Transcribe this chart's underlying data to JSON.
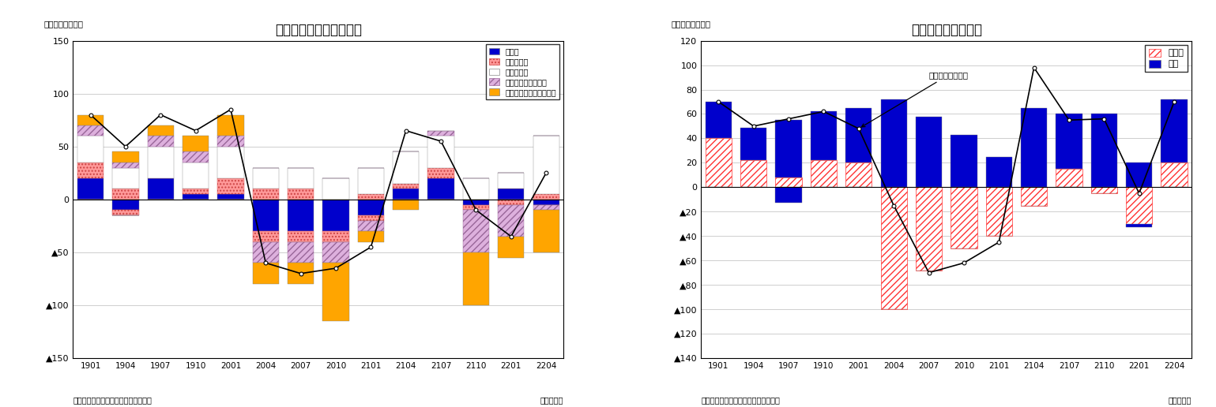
{
  "chart1": {
    "title": "産業別・就業者数の推移",
    "ylabel_top": "（前年差、万人）",
    "xlabel_bottom": "（年・月）",
    "source": "（資料）総務省統計局「労働力調査」",
    "ylim": [
      -150,
      150
    ],
    "yticks": [
      150,
      100,
      50,
      0,
      -50,
      -100,
      -150
    ],
    "ytick_labels": [
      "150",
      "100",
      "50",
      "0",
      "▲50",
      "▲100",
      "▲150"
    ],
    "categories": [
      "1901",
      "1904",
      "1907",
      "1910",
      "2001",
      "2004",
      "2007",
      "2010",
      "2101",
      "2104",
      "2107",
      "2110",
      "2201",
      "2204"
    ],
    "manuf_pos": [
      20,
      0,
      20,
      5,
      5,
      0,
      0,
      0,
      0,
      10,
      20,
      0,
      10,
      0
    ],
    "whole_pos": [
      15,
      10,
      0,
      5,
      15,
      10,
      10,
      0,
      5,
      5,
      10,
      0,
      0,
      5
    ],
    "medic_pos": [
      25,
      20,
      30,
      25,
      30,
      20,
      20,
      20,
      25,
      30,
      30,
      20,
      15,
      55
    ],
    "accom_pos": [
      10,
      5,
      10,
      10,
      10,
      0,
      0,
      0,
      0,
      0,
      5,
      0,
      0,
      0
    ],
    "lifes_pos": [
      10,
      10,
      10,
      15,
      20,
      0,
      0,
      0,
      0,
      0,
      0,
      0,
      0,
      0
    ],
    "manuf_neg": [
      0,
      -10,
      0,
      0,
      0,
      -30,
      -30,
      -30,
      -15,
      0,
      0,
      -5,
      0,
      -5
    ],
    "whole_neg": [
      0,
      -5,
      0,
      0,
      0,
      -10,
      -10,
      -10,
      -5,
      0,
      0,
      -5,
      -5,
      0
    ],
    "medic_neg": [
      0,
      0,
      0,
      0,
      0,
      0,
      0,
      0,
      0,
      0,
      0,
      0,
      0,
      0
    ],
    "accom_neg": [
      0,
      0,
      0,
      0,
      0,
      -20,
      -20,
      -20,
      -10,
      0,
      0,
      -40,
      -30,
      -5
    ],
    "lifes_neg": [
      0,
      0,
      0,
      0,
      0,
      -20,
      -20,
      -55,
      -10,
      -10,
      0,
      -50,
      -20,
      -40
    ],
    "line1": [
      80,
      50,
      80,
      65,
      85,
      -60,
      -70,
      -65,
      -45,
      65,
      55,
      -10,
      -35,
      25
    ],
    "c_manuf": "#0000CC",
    "c_whole": "#FF9999",
    "c_medic": "#DDDDDD",
    "c_accom": "#DDB0DD",
    "c_lifes": "#FFA500",
    "legend_labels": [
      "製造業",
      "卸売・小売",
      "医療・福祉",
      "宿泊・飲食サービス",
      "生活関連サービス・娯楽"
    ]
  },
  "chart2": {
    "title": "雇用形態別雇用者数",
    "ylabel_top": "（前年差、万人）",
    "xlabel_bottom": "（年・月）",
    "source": "（資料）総務省統計局「労働力調査」",
    "annotation_text": "役員を除く雇用者",
    "ylim": [
      -140,
      120
    ],
    "yticks": [
      120,
      100,
      80,
      60,
      40,
      20,
      0,
      -20,
      -40,
      -60,
      -80,
      -100,
      -120,
      -140
    ],
    "ytick_labels": [
      "120",
      "100",
      "80",
      "60",
      "40",
      "20",
      "0",
      "▲20",
      "▲40",
      "▲60",
      "▲80",
      "▲100",
      "▲120",
      "▲140"
    ],
    "categories": [
      "1901",
      "1904",
      "1907",
      "1910",
      "2001",
      "2004",
      "2007",
      "2010",
      "2101",
      "2104",
      "2107",
      "2110",
      "2201",
      "2204"
    ],
    "irreg_pos": [
      40,
      22,
      8,
      22,
      20,
      0,
      0,
      0,
      0,
      0,
      15,
      0,
      0,
      20
    ],
    "irreg_neg": [
      0,
      0,
      0,
      0,
      0,
      -100,
      -68,
      -50,
      -40,
      -15,
      0,
      -5,
      -30,
      0
    ],
    "reg_pos": [
      30,
      27,
      47,
      40,
      45,
      72,
      58,
      43,
      25,
      65,
      45,
      60,
      20,
      52
    ],
    "reg_neg": [
      0,
      0,
      -13,
      0,
      0,
      0,
      0,
      0,
      0,
      0,
      0,
      0,
      -3,
      0
    ],
    "line2": [
      70,
      50,
      56,
      62,
      48,
      -15,
      -70,
      -62,
      -45,
      98,
      55,
      56,
      -5,
      70
    ],
    "c_irreg": "#FF3333",
    "c_reg": "#0000CC",
    "legend_labels": [
      "非正規",
      "正規"
    ]
  }
}
